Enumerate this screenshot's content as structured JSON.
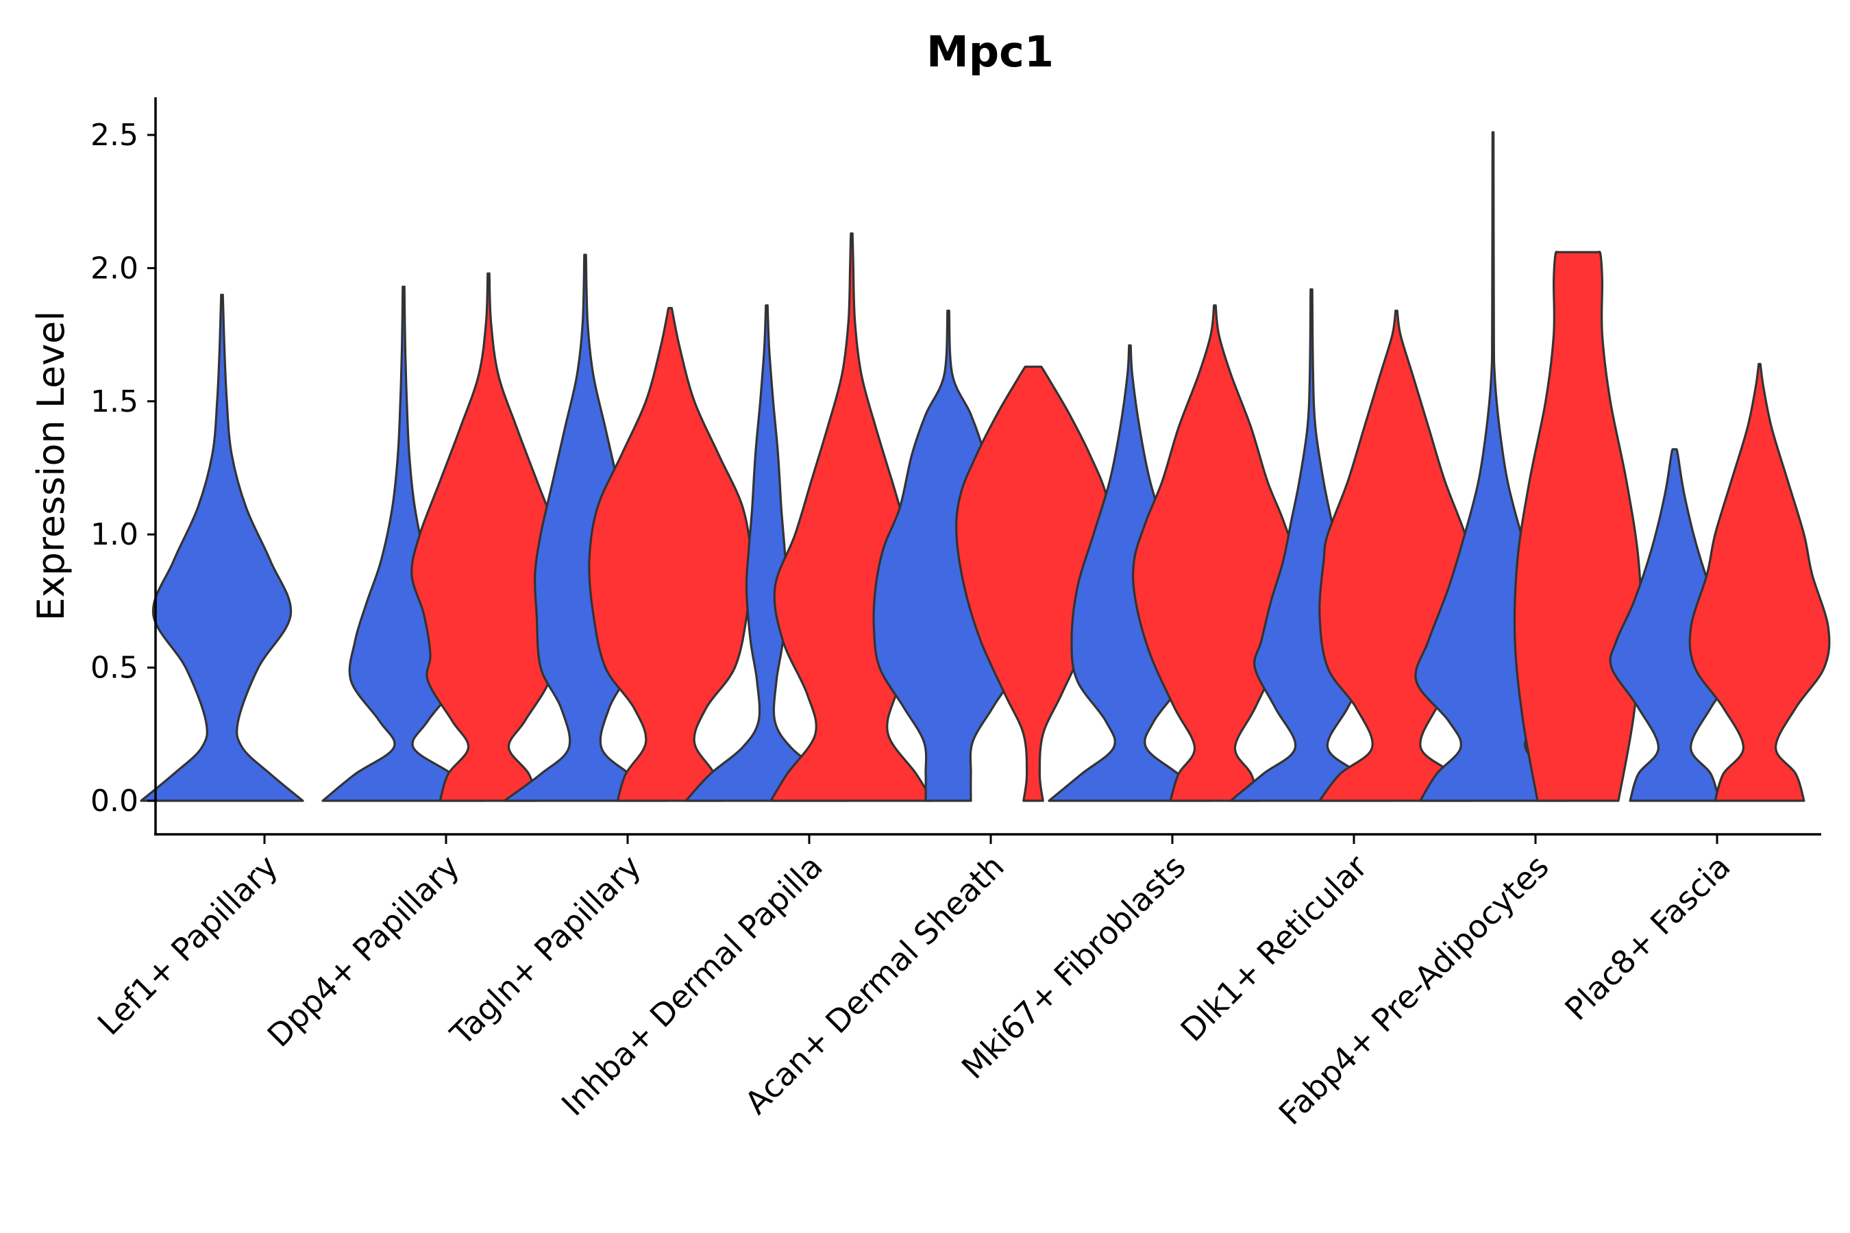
{
  "chart_data": {
    "type": "violin",
    "title": "Mpc1",
    "xlabel": "",
    "ylabel": "Expression Level",
    "ylim": [
      -0.12,
      2.65
    ],
    "yticks": [
      "0.0",
      "0.5",
      "1.0",
      "1.5",
      "2.0",
      "2.5"
    ],
    "grid": false,
    "legend": "none",
    "series_colors": {
      "blue": "#4169E1",
      "red": "#FF3333"
    },
    "categories": [
      "Lef1+ Papillary",
      "Dpp4+ Papillary",
      "Tagln+ Papillary",
      "Inhba+ Dermal Papilla",
      "Acan+ Dermal Sheath",
      "Mki67+ Fibroblasts",
      "Dlk1+ Reticular",
      "Fabp4+ Pre-Adipocytes",
      "Plac8+ Fascia"
    ],
    "violins": [
      {
        "category": "Lef1+ Papillary",
        "color": "blue",
        "max": 1.9,
        "profile": [
          [
            0,
            1.0
          ],
          [
            0.1,
            0.6
          ],
          [
            0.2,
            0.25
          ],
          [
            0.3,
            0.2
          ],
          [
            0.5,
            0.45
          ],
          [
            0.7,
            0.85
          ],
          [
            0.9,
            0.6
          ],
          [
            1.1,
            0.3
          ],
          [
            1.3,
            0.12
          ],
          [
            1.5,
            0.06
          ],
          [
            1.7,
            0.03
          ],
          [
            1.9,
            0.01
          ]
        ]
      },
      {
        "category": "Dpp4+ Papillary",
        "color": "blue",
        "max": 1.93,
        "profile": [
          [
            0,
            1.0
          ],
          [
            0.1,
            0.6
          ],
          [
            0.2,
            0.12
          ],
          [
            0.3,
            0.3
          ],
          [
            0.45,
            0.65
          ],
          [
            0.6,
            0.6
          ],
          [
            0.75,
            0.45
          ],
          [
            0.9,
            0.28
          ],
          [
            1.1,
            0.14
          ],
          [
            1.3,
            0.07
          ],
          [
            1.5,
            0.04
          ],
          [
            1.7,
            0.02
          ],
          [
            1.93,
            0.01
          ]
        ]
      },
      {
        "category": "Dpp4+ Papillary",
        "color": "red",
        "max": 1.98,
        "profile": [
          [
            0,
            0.6
          ],
          [
            0.1,
            0.5
          ],
          [
            0.2,
            0.25
          ],
          [
            0.3,
            0.45
          ],
          [
            0.45,
            0.75
          ],
          [
            0.55,
            0.72
          ],
          [
            0.7,
            0.8
          ],
          [
            0.85,
            0.95
          ],
          [
            1.0,
            0.85
          ],
          [
            1.2,
            0.6
          ],
          [
            1.4,
            0.35
          ],
          [
            1.6,
            0.12
          ],
          [
            1.8,
            0.03
          ],
          [
            1.98,
            0.01
          ]
        ]
      },
      {
        "category": "Tagln+ Papillary",
        "color": "blue",
        "max": 2.05,
        "profile": [
          [
            0,
            1.0
          ],
          [
            0.1,
            0.55
          ],
          [
            0.2,
            0.2
          ],
          [
            0.35,
            0.3
          ],
          [
            0.5,
            0.55
          ],
          [
            0.7,
            0.6
          ],
          [
            0.85,
            0.62
          ],
          [
            1.0,
            0.55
          ],
          [
            1.2,
            0.4
          ],
          [
            1.4,
            0.25
          ],
          [
            1.6,
            0.1
          ],
          [
            1.8,
            0.03
          ],
          [
            2.05,
            0.01
          ]
        ]
      },
      {
        "category": "Tagln+ Papillary",
        "color": "red",
        "max": 1.85,
        "profile": [
          [
            0,
            0.65
          ],
          [
            0.1,
            0.55
          ],
          [
            0.22,
            0.3
          ],
          [
            0.35,
            0.45
          ],
          [
            0.5,
            0.8
          ],
          [
            0.7,
            0.95
          ],
          [
            0.9,
            1.0
          ],
          [
            1.1,
            0.9
          ],
          [
            1.3,
            0.6
          ],
          [
            1.5,
            0.3
          ],
          [
            1.7,
            0.12
          ],
          [
            1.85,
            0.02
          ]
        ]
      },
      {
        "category": "Inhba+ Dermal Papilla",
        "color": "blue",
        "max": 1.86,
        "profile": [
          [
            0,
            1.0
          ],
          [
            0.1,
            0.7
          ],
          [
            0.2,
            0.3
          ],
          [
            0.3,
            0.1
          ],
          [
            0.45,
            0.12
          ],
          [
            0.6,
            0.2
          ],
          [
            0.8,
            0.25
          ],
          [
            0.95,
            0.22
          ],
          [
            1.1,
            0.18
          ],
          [
            1.3,
            0.14
          ],
          [
            1.5,
            0.08
          ],
          [
            1.7,
            0.03
          ],
          [
            1.86,
            0.01
          ]
        ]
      },
      {
        "category": "Inhba+ Dermal Papilla",
        "color": "red",
        "max": 2.13,
        "profile": [
          [
            0,
            1.0
          ],
          [
            0.1,
            0.8
          ],
          [
            0.25,
            0.45
          ],
          [
            0.4,
            0.55
          ],
          [
            0.6,
            0.85
          ],
          [
            0.8,
            0.95
          ],
          [
            1.0,
            0.7
          ],
          [
            1.2,
            0.5
          ],
          [
            1.4,
            0.3
          ],
          [
            1.6,
            0.12
          ],
          [
            1.8,
            0.04
          ],
          [
            2.0,
            0.02
          ],
          [
            2.13,
            0.01
          ]
        ]
      },
      {
        "category": "Acan+ Dermal Sheath",
        "color": "blue",
        "max": 1.84,
        "profile": [
          [
            0,
            0.28
          ],
          [
            0.1,
            0.28
          ],
          [
            0.22,
            0.3
          ],
          [
            0.35,
            0.55
          ],
          [
            0.5,
            0.85
          ],
          [
            0.65,
            0.92
          ],
          [
            0.8,
            0.9
          ],
          [
            0.95,
            0.8
          ],
          [
            1.1,
            0.6
          ],
          [
            1.3,
            0.45
          ],
          [
            1.45,
            0.28
          ],
          [
            1.6,
            0.05
          ],
          [
            1.84,
            0.01
          ]
        ]
      },
      {
        "category": "Acan+ Dermal Sheath",
        "color": "red",
        "max": 1.63,
        "profile": [
          [
            0,
            0.12
          ],
          [
            0.1,
            0.08
          ],
          [
            0.25,
            0.12
          ],
          [
            0.4,
            0.35
          ],
          [
            0.6,
            0.65
          ],
          [
            0.8,
            0.85
          ],
          [
            1.0,
            0.95
          ],
          [
            1.15,
            0.9
          ],
          [
            1.3,
            0.7
          ],
          [
            1.45,
            0.45
          ],
          [
            1.58,
            0.2
          ],
          [
            1.63,
            0.1
          ]
        ]
      },
      {
        "category": "Mki67+ Fibroblasts",
        "color": "blue",
        "max": 1.71,
        "profile": [
          [
            0,
            1.0
          ],
          [
            0.1,
            0.6
          ],
          [
            0.2,
            0.2
          ],
          [
            0.3,
            0.3
          ],
          [
            0.45,
            0.65
          ],
          [
            0.6,
            0.72
          ],
          [
            0.8,
            0.65
          ],
          [
            1.0,
            0.45
          ],
          [
            1.2,
            0.25
          ],
          [
            1.4,
            0.12
          ],
          [
            1.6,
            0.03
          ],
          [
            1.71,
            0.01
          ]
        ]
      },
      {
        "category": "Mki67+ Fibroblasts",
        "color": "red",
        "max": 1.86,
        "profile": [
          [
            0,
            0.55
          ],
          [
            0.1,
            0.45
          ],
          [
            0.2,
            0.25
          ],
          [
            0.35,
            0.5
          ],
          [
            0.55,
            0.8
          ],
          [
            0.75,
            0.98
          ],
          [
            0.9,
            1.0
          ],
          [
            1.05,
            0.85
          ],
          [
            1.2,
            0.65
          ],
          [
            1.4,
            0.45
          ],
          [
            1.6,
            0.2
          ],
          [
            1.75,
            0.05
          ],
          [
            1.86,
            0.01
          ]
        ]
      },
      {
        "category": "Dlk1+ Reticular",
        "color": "blue",
        "max": 1.92,
        "profile": [
          [
            0,
            1.0
          ],
          [
            0.1,
            0.6
          ],
          [
            0.2,
            0.2
          ],
          [
            0.35,
            0.45
          ],
          [
            0.5,
            0.7
          ],
          [
            0.6,
            0.62
          ],
          [
            0.75,
            0.5
          ],
          [
            0.9,
            0.35
          ],
          [
            1.05,
            0.25
          ],
          [
            1.2,
            0.15
          ],
          [
            1.4,
            0.05
          ],
          [
            1.6,
            0.02
          ],
          [
            1.92,
            0.01
          ]
        ]
      },
      {
        "category": "Dlk1+ Reticular",
        "color": "red",
        "max": 1.84,
        "profile": [
          [
            0,
            0.95
          ],
          [
            0.1,
            0.7
          ],
          [
            0.2,
            0.3
          ],
          [
            0.35,
            0.5
          ],
          [
            0.5,
            0.85
          ],
          [
            0.7,
            0.95
          ],
          [
            0.9,
            0.9
          ],
          [
            1.0,
            0.85
          ],
          [
            1.2,
            0.6
          ],
          [
            1.4,
            0.4
          ],
          [
            1.6,
            0.2
          ],
          [
            1.75,
            0.05
          ],
          [
            1.84,
            0.01
          ]
        ]
      },
      {
        "category": "Fabp4+ Pre-Adipocytes",
        "color": "blue",
        "max": 2.51,
        "profile": [
          [
            0,
            0.9
          ],
          [
            0.1,
            0.7
          ],
          [
            0.2,
            0.4
          ],
          [
            0.3,
            0.55
          ],
          [
            0.45,
            0.95
          ],
          [
            0.6,
            0.8
          ],
          [
            0.8,
            0.55
          ],
          [
            1.0,
            0.35
          ],
          [
            1.2,
            0.18
          ],
          [
            1.4,
            0.08
          ],
          [
            1.6,
            0.02
          ],
          [
            1.8,
            0.01
          ],
          [
            2.51,
            0.005
          ]
        ]
      },
      {
        "category": "Fabp4+ Pre-Adipocytes",
        "color": "red",
        "max": 2.06,
        "profile": [
          [
            0,
            0.5
          ],
          [
            0.3,
            0.68
          ],
          [
            0.6,
            0.78
          ],
          [
            0.9,
            0.75
          ],
          [
            1.2,
            0.6
          ],
          [
            1.5,
            0.4
          ],
          [
            1.75,
            0.3
          ],
          [
            1.95,
            0.3
          ],
          [
            2.05,
            0.28
          ],
          [
            2.06,
            0.25
          ]
        ]
      },
      {
        "category": "Plac8+ Fascia",
        "color": "blue",
        "max": 1.32,
        "profile": [
          [
            0,
            0.55
          ],
          [
            0.1,
            0.45
          ],
          [
            0.2,
            0.2
          ],
          [
            0.35,
            0.45
          ],
          [
            0.5,
            0.78
          ],
          [
            0.6,
            0.72
          ],
          [
            0.75,
            0.5
          ],
          [
            0.95,
            0.28
          ],
          [
            1.15,
            0.12
          ],
          [
            1.3,
            0.04
          ],
          [
            1.32,
            0.02
          ]
        ]
      },
      {
        "category": "Plac8+ Fascia",
        "color": "red",
        "max": 1.64,
        "profile": [
          [
            0,
            0.55
          ],
          [
            0.1,
            0.45
          ],
          [
            0.2,
            0.2
          ],
          [
            0.35,
            0.45
          ],
          [
            0.5,
            0.8
          ],
          [
            0.65,
            0.85
          ],
          [
            0.85,
            0.65
          ],
          [
            1.0,
            0.55
          ],
          [
            1.2,
            0.35
          ],
          [
            1.4,
            0.15
          ],
          [
            1.55,
            0.05
          ],
          [
            1.64,
            0.01
          ]
        ]
      }
    ]
  }
}
